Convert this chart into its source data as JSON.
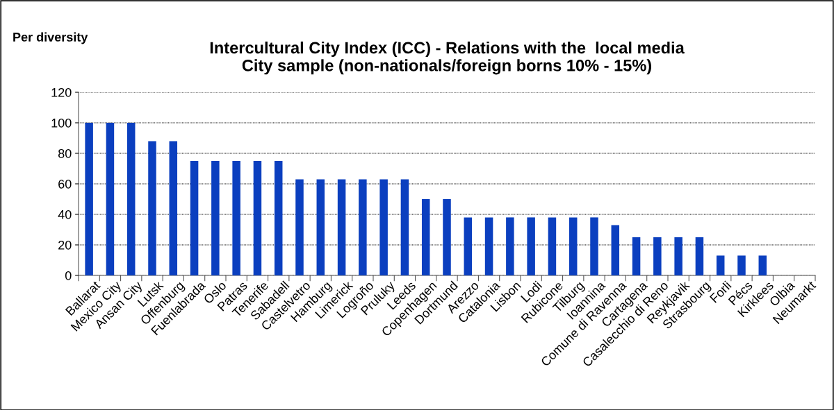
{
  "chart_data": {
    "type": "bar",
    "title": "Intercultural City Index (ICC) - Relations with the  local media\nCity sample (non-nationals/foreign borns 10% - 15%)",
    "annotations": [
      "Per diversity"
    ],
    "categories": [
      "Ballarat",
      "Mexico City",
      "Ansan City",
      "Lutsk",
      "Offenburg",
      "Fuenlabrada",
      "Oslo",
      "Patras",
      "Tenerife",
      "Sabadell",
      "Castelvetro",
      "Hamburg",
      "Limerick",
      "Logroño",
      "Pruluky",
      "Leeds",
      "Copenhagen",
      "Dortmund",
      "Arezzo",
      "Catalonia",
      "Lisbon",
      "Lodi",
      "Rubicone",
      "Tilburg",
      "Ioannina",
      "Comune di Ravenna",
      "Cartagena",
      "Casalecchio di Reno",
      "Reykjavik",
      "Strasbourg",
      "Forli",
      "Pécs",
      "Kirklees",
      "Olbia",
      "Neumarkt"
    ],
    "values": [
      100,
      100,
      100,
      88,
      88,
      75,
      75,
      75,
      75,
      75,
      63,
      63,
      63,
      63,
      63,
      63,
      50,
      50,
      38,
      38,
      38,
      38,
      38,
      38,
      38,
      33,
      25,
      25,
      25,
      25,
      13,
      13,
      13,
      0,
      0
    ],
    "color": "#0b3fbf",
    "ylim": [
      0,
      120
    ],
    "yticks": [
      0,
      20,
      40,
      60,
      80,
      100,
      120
    ],
    "grid": "y",
    "legend": false
  }
}
